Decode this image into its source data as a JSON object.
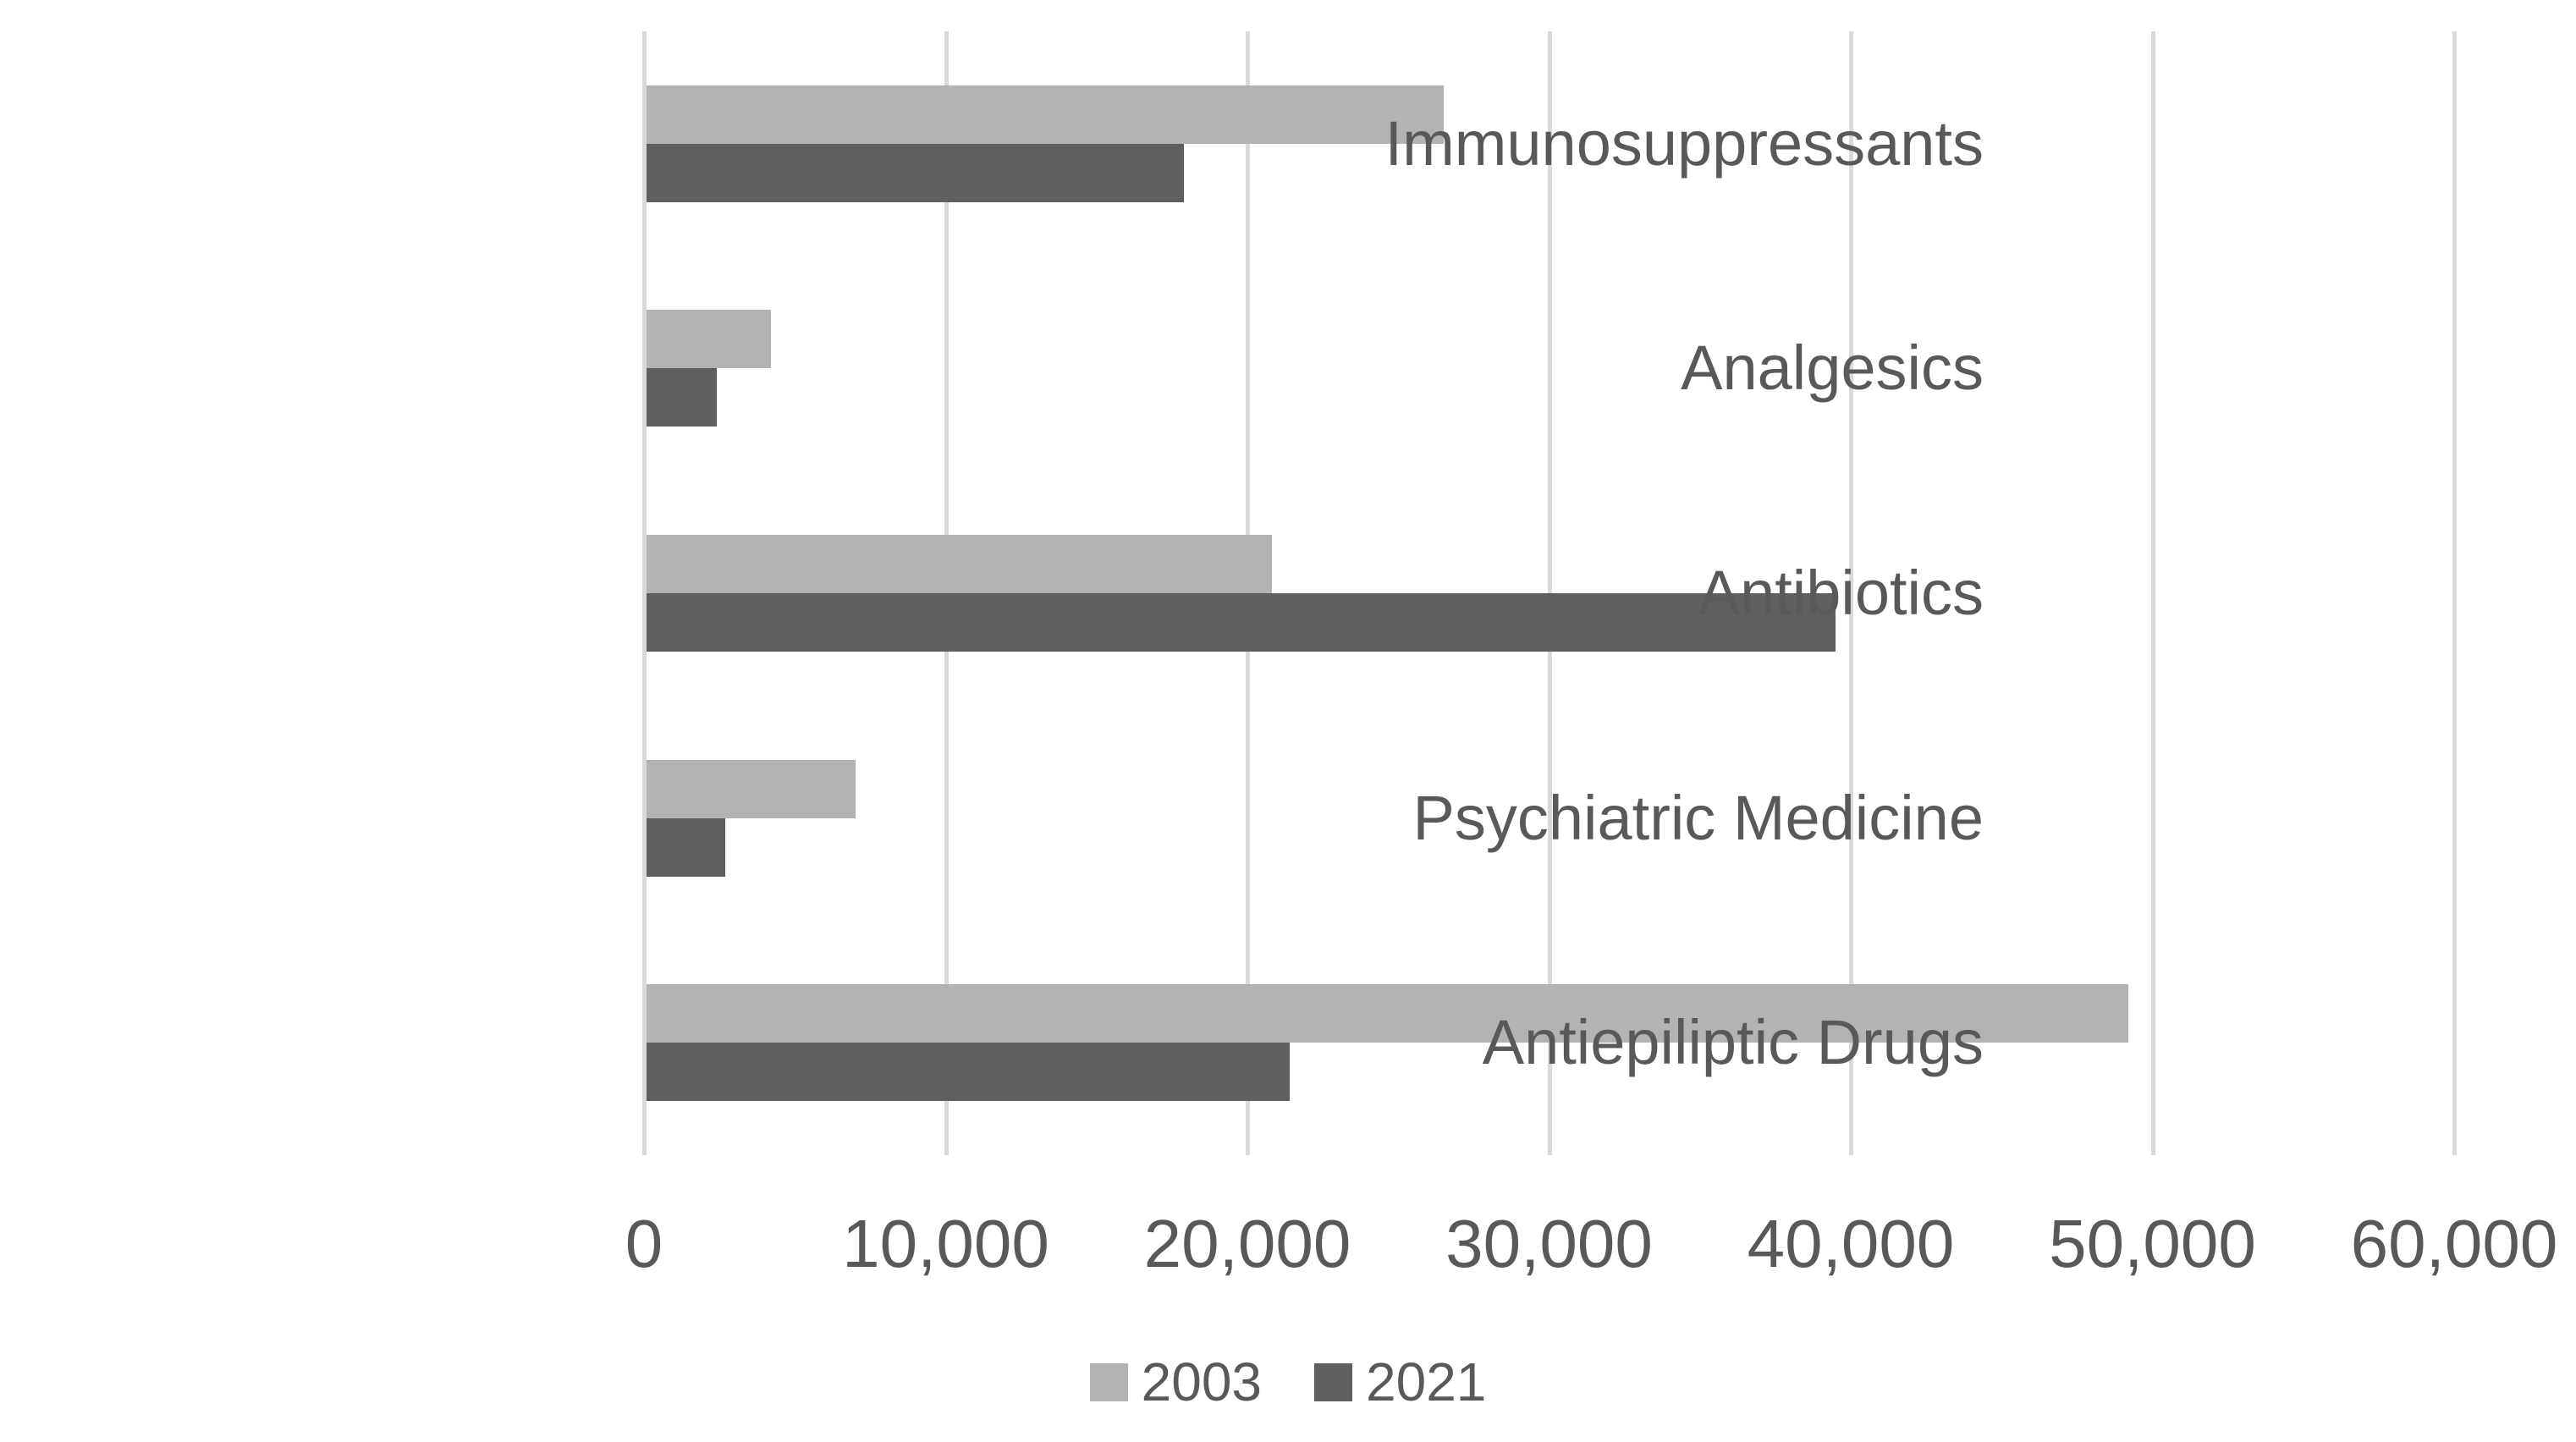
{
  "chart_data": {
    "type": "bar",
    "orientation": "horizontal",
    "title": "",
    "xlabel": "",
    "ylabel": "",
    "categories": [
      "Immunosuppressants",
      "Analgesics",
      "Antibiotics",
      "Psychiatric Medicine",
      "Antiepiliptic Drugs"
    ],
    "series": [
      {
        "name": "2003",
        "color": "#b3b3b3",
        "values": [
          26500,
          4200,
          20800,
          7000,
          49200
        ]
      },
      {
        "name": "2021",
        "color": "#5f5f5f",
        "values": [
          17900,
          2400,
          39500,
          2700,
          21400
        ]
      }
    ],
    "xlim": [
      0,
      60000
    ],
    "x_tick_interval": 10000,
    "x_tick_labels": [
      "0",
      "10,000",
      "20,000",
      "30,000",
      "40,000",
      "50,000",
      "60,000"
    ],
    "grid": true,
    "gridline_color": "#d9d9d9",
    "text_color": "#595959",
    "legend_position": "bottom"
  }
}
